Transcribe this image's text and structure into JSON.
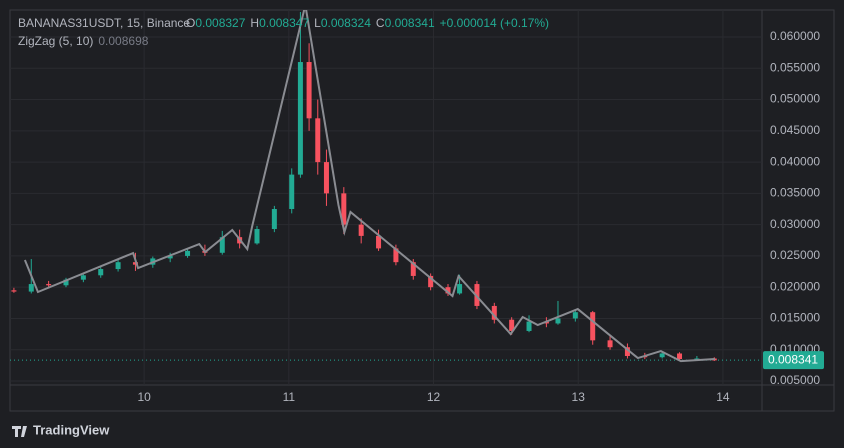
{
  "chart_data": {
    "type": "candlestick",
    "symbol": "BANANAS31USDT, 15, Binance",
    "ohlc": [
      {
        "label": "O",
        "value": "0.008327"
      },
      {
        "label": "H",
        "value": "0.008347"
      },
      {
        "label": "L",
        "value": "0.008324"
      },
      {
        "label": "C",
        "value": "0.008341"
      }
    ],
    "change": "+0.000014 (+0.17%)",
    "indicator": {
      "name": "ZigZag (5, 10)",
      "value": "0.008698"
    },
    "brand": "TradingView",
    "up_color": "#22ab94",
    "down_color": "#f7525f",
    "x": [
      9.1,
      9.22,
      9.34,
      9.46,
      9.58,
      9.7,
      9.82,
      9.94,
      10.06,
      10.18,
      10.3,
      10.42,
      10.54,
      10.66,
      10.78,
      10.9,
      11.02,
      11.08,
      11.14,
      11.2,
      11.26,
      11.38,
      11.5,
      11.62,
      11.74,
      11.86,
      11.98,
      12.1,
      12.18,
      12.3,
      12.42,
      12.54,
      12.66,
      12.78,
      12.86,
      12.98,
      13.1,
      13.22,
      13.34,
      13.46,
      13.58,
      13.7,
      13.82,
      13.94
    ],
    "open": [
      0.0195,
      0.0193,
      0.0205,
      0.0203,
      0.0212,
      0.0219,
      0.0229,
      0.024,
      0.0236,
      0.0246,
      0.025,
      0.0258,
      0.0255,
      0.028,
      0.027,
      0.0293,
      0.0325,
      0.038,
      0.056,
      0.047,
      0.04,
      0.035,
      0.03,
      0.0282,
      0.0262,
      0.024,
      0.0218,
      0.02,
      0.019,
      0.0205,
      0.017,
      0.0148,
      0.013,
      0.0145,
      0.0142,
      0.015,
      0.016,
      0.0115,
      0.0104,
      0.009,
      0.0088,
      0.0094,
      0.0085,
      0.0086
    ],
    "high": [
      0.0199,
      0.0245,
      0.021,
      0.0215,
      0.0222,
      0.0232,
      0.0245,
      0.0255,
      0.0249,
      0.0255,
      0.0262,
      0.0268,
      0.029,
      0.0292,
      0.0298,
      0.033,
      0.039,
      0.064,
      0.059,
      0.05,
      0.042,
      0.036,
      0.031,
      0.0292,
      0.0268,
      0.0245,
      0.0222,
      0.0205,
      0.022,
      0.021,
      0.0175,
      0.0152,
      0.0155,
      0.0152,
      0.0178,
      0.0165,
      0.0162,
      0.0122,
      0.011,
      0.0095,
      0.0098,
      0.0096,
      0.009,
      0.0088
    ],
    "low": [
      0.0191,
      0.019,
      0.0198,
      0.02,
      0.0208,
      0.0215,
      0.0225,
      0.0226,
      0.0231,
      0.024,
      0.0247,
      0.025,
      0.0252,
      0.0262,
      0.0268,
      0.0288,
      0.0318,
      0.0375,
      0.045,
      0.038,
      0.033,
      0.0285,
      0.027,
      0.0258,
      0.0235,
      0.0212,
      0.0195,
      0.0186,
      0.0188,
      0.0165,
      0.0142,
      0.0124,
      0.0128,
      0.0136,
      0.014,
      0.0145,
      0.0108,
      0.01,
      0.0086,
      0.0085,
      0.0086,
      0.0082,
      0.0083,
      0.0082
    ],
    "close": [
      0.0193,
      0.0205,
      0.0203,
      0.0212,
      0.0219,
      0.0229,
      0.024,
      0.0236,
      0.0246,
      0.025,
      0.0258,
      0.0255,
      0.028,
      0.027,
      0.0293,
      0.0325,
      0.038,
      0.056,
      0.047,
      0.04,
      0.035,
      0.03,
      0.0282,
      0.0262,
      0.024,
      0.0218,
      0.02,
      0.019,
      0.0205,
      0.017,
      0.0148,
      0.013,
      0.0145,
      0.0142,
      0.015,
      0.016,
      0.0115,
      0.0104,
      0.009,
      0.0088,
      0.0094,
      0.0085,
      0.0086,
      0.0083
    ],
    "zigzag": {
      "color": "#8a8c92",
      "x": [
        9.176,
        9.266,
        9.924,
        9.958,
        10.381,
        10.422,
        10.609,
        10.713,
        10.747,
        11.114,
        11.343,
        11.384,
        11.426,
        12.131,
        12.173,
        12.533,
        12.616,
        12.72,
        12.997,
        13.412,
        13.571,
        13.709,
        13.945
      ],
      "values": [
        0.02434,
        0.01923,
        0.02546,
        0.02306,
        0.0269,
        0.02562,
        0.02914,
        0.0261,
        0.02978,
        0.06512,
        0.03313,
        0.02882,
        0.03202,
        0.01859,
        0.02178,
        0.01251,
        0.01523,
        0.01395,
        0.0165,
        0.00867,
        0.00978,
        0.00818,
        0.00851
      ]
    },
    "last_price": {
      "value": 0.008341,
      "label": "0.008341"
    },
    "xlim": [
      9.073,
      14.27
    ],
    "xticks": [
      10,
      11,
      12,
      13,
      14
    ],
    "ylim": [
      0.00436,
      0.06432
    ],
    "yticks": [
      {
        "value": 0.06,
        "label": "0.060000"
      },
      {
        "value": 0.055,
        "label": "0.055000"
      },
      {
        "value": 0.05,
        "label": "0.050000"
      },
      {
        "value": 0.045,
        "label": "0.045000"
      },
      {
        "value": 0.04,
        "label": "0.040000"
      },
      {
        "value": 0.035,
        "label": "0.035000"
      },
      {
        "value": 0.03,
        "label": "0.030000"
      },
      {
        "value": 0.025,
        "label": "0.025000"
      },
      {
        "value": 0.02,
        "label": "0.020000"
      },
      {
        "value": 0.015,
        "label": "0.015000"
      },
      {
        "value": 0.01,
        "label": "0.010000"
      },
      {
        "value": 0.005,
        "label": "0.005000"
      }
    ],
    "grid": true
  }
}
